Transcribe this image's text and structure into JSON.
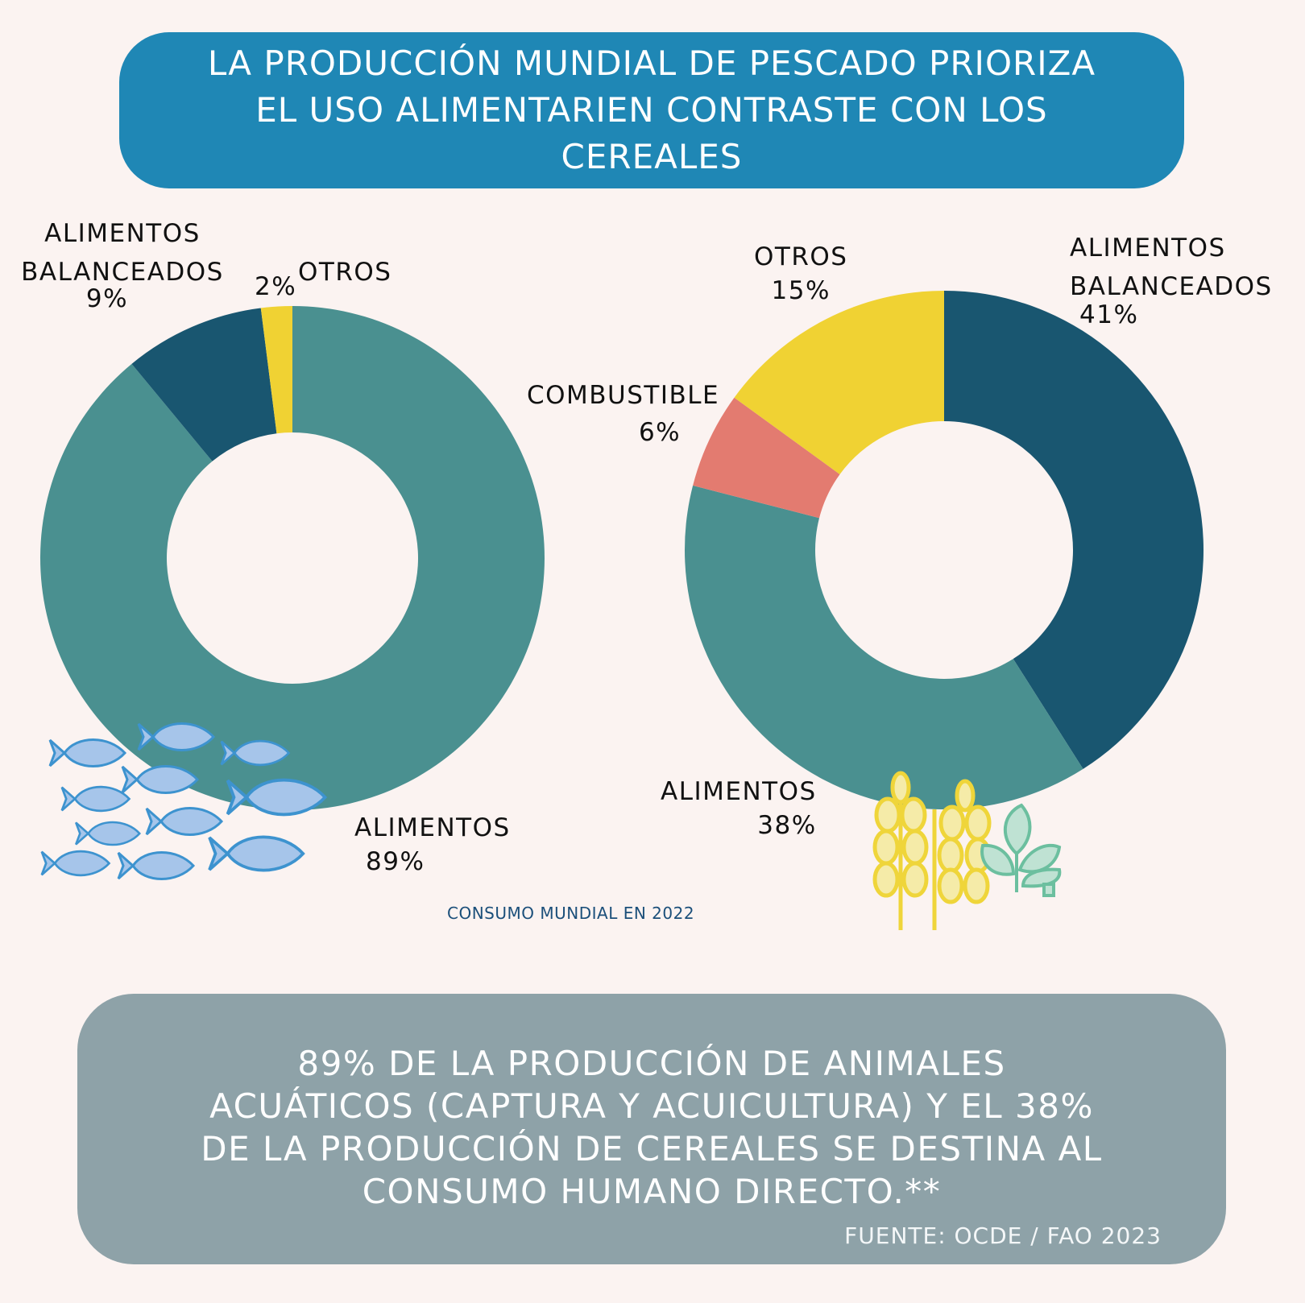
{
  "title": "LA PRODUCCIÓN MUNDIAL DE PESCADO PRIORIZA EL USO ALIMENTARIEN CONTRASTE CON LOS CEREALES",
  "caption": "CONSUMO MUNDIAL EN 2022",
  "summary": "89% DE LA PRODUCCIÓN DE ANIMALES ACUÁTICOS (CAPTURA Y ACUICULTURA) Y EL 38% DE LA PRODUCCIÓN DE CEREALES SE DESTINA AL CONSUMO HUMANO DIRECTO.**",
  "source": "FUENTE: OCDE / FAO 2023",
  "icons": [
    "fish-school-icon",
    "wheat-icon",
    "leaf-plant-icon"
  ],
  "colors": {
    "alimentos": "#4a9090",
    "balanceados": "#195670",
    "otros": "#f0d233",
    "combustible": "#e37b70",
    "banner": "#1f87b5",
    "summary": "#8ea2a8"
  },
  "chart_data": [
    {
      "type": "pie",
      "donut": true,
      "slices": [
        {
          "label": "ALIMENTOS",
          "value": 89,
          "pct_text": "89%",
          "color": "#4a9090"
        },
        {
          "label": "ALIMENTOS BALANCEADOS",
          "value": 9,
          "pct_text": "9%",
          "color": "#195670"
        },
        {
          "label": "OTROS",
          "value": 2,
          "pct_text": "2%",
          "color": "#f0d233"
        }
      ]
    },
    {
      "type": "pie",
      "donut": true,
      "slices": [
        {
          "label": "ALIMENTOS BALANCEADOS",
          "value": 41,
          "pct_text": "41%",
          "color": "#195670"
        },
        {
          "label": "ALIMENTOS",
          "value": 38,
          "pct_text": "38%",
          "color": "#4a9090"
        },
        {
          "label": "COMBUSTIBLE",
          "value": 6,
          "pct_text": "6%",
          "color": "#e37b70"
        },
        {
          "label": "OTROS",
          "value": 15,
          "pct_text": "15%",
          "color": "#f0d233"
        }
      ]
    }
  ]
}
